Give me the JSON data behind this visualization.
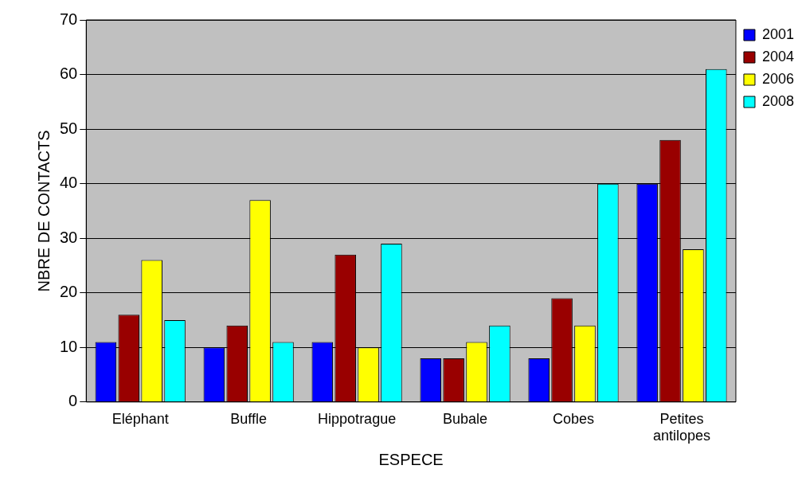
{
  "chart_data": {
    "type": "bar",
    "xlabel": "ESPECE",
    "ylabel": "NBRE DE CONTACTS",
    "categories": [
      "Eléphant",
      "Buffle",
      "Hippotrague",
      "Bubale",
      "Cobes",
      "Petites antilopes"
    ],
    "series": [
      {
        "name": "2001",
        "color": "#0000ff",
        "values": [
          11,
          10,
          11,
          8,
          8,
          40
        ]
      },
      {
        "name": "2004",
        "color": "#990000",
        "values": [
          16,
          14,
          27,
          8,
          19,
          48
        ]
      },
      {
        "name": "2006",
        "color": "#ffff00",
        "values": [
          26,
          37,
          10,
          11,
          14,
          28
        ]
      },
      {
        "name": "2008",
        "color": "#00ffff",
        "values": [
          15,
          11,
          29,
          14,
          40,
          61
        ]
      }
    ],
    "ylim": [
      0,
      70
    ],
    "yticks": [
      0,
      10,
      20,
      30,
      40,
      50,
      60,
      70
    ],
    "grid": "y",
    "legend": "top right"
  }
}
